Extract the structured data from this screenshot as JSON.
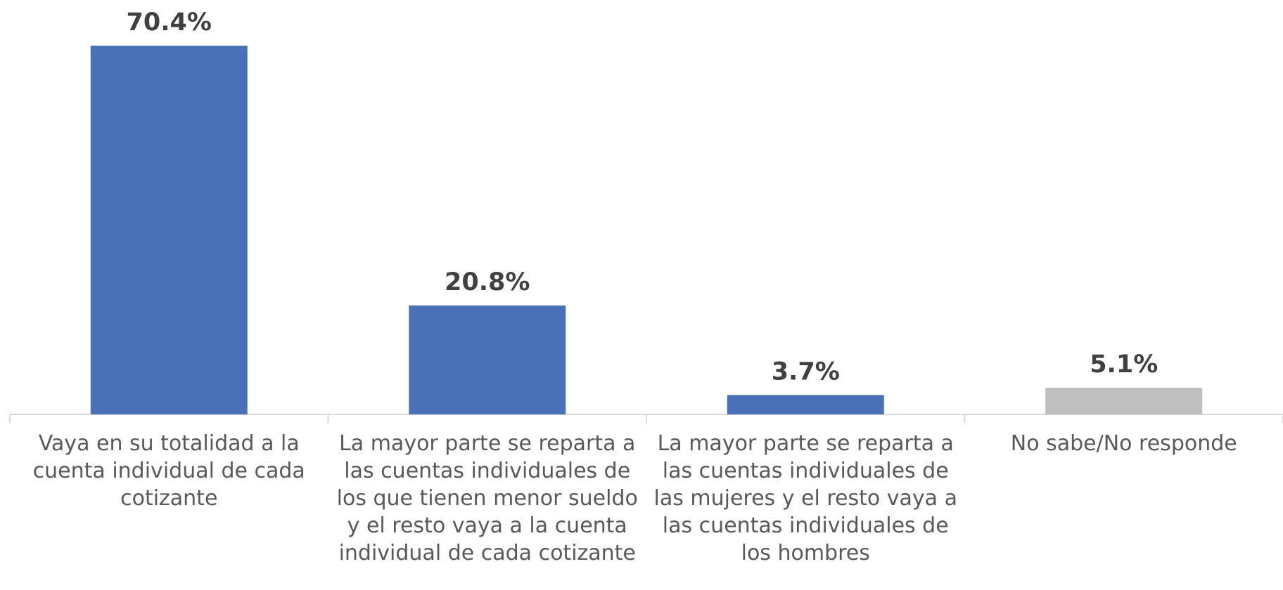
{
  "chart_data": {
    "type": "bar",
    "categories": [
      "Vaya en su totalidad a la cuenta individual de cada cotizante",
      "La mayor parte se reparta a las cuentas individuales de los que tienen menor sueldo y el resto vaya a la cuenta individual de cada cotizante",
      "La mayor parte se reparta a las cuentas individuales de las mujeres y el resto vaya a las cuentas individuales de los hombres",
      "No sabe/No responde"
    ],
    "values": [
      70.4,
      20.8,
      3.7,
      5.1
    ],
    "value_labels": [
      "70.4%",
      "20.8%",
      "3.7%",
      "5.1%"
    ],
    "colors": [
      "#4a70b7",
      "#4a70b7",
      "#4a70b7",
      "#bfbfbf"
    ]
  }
}
